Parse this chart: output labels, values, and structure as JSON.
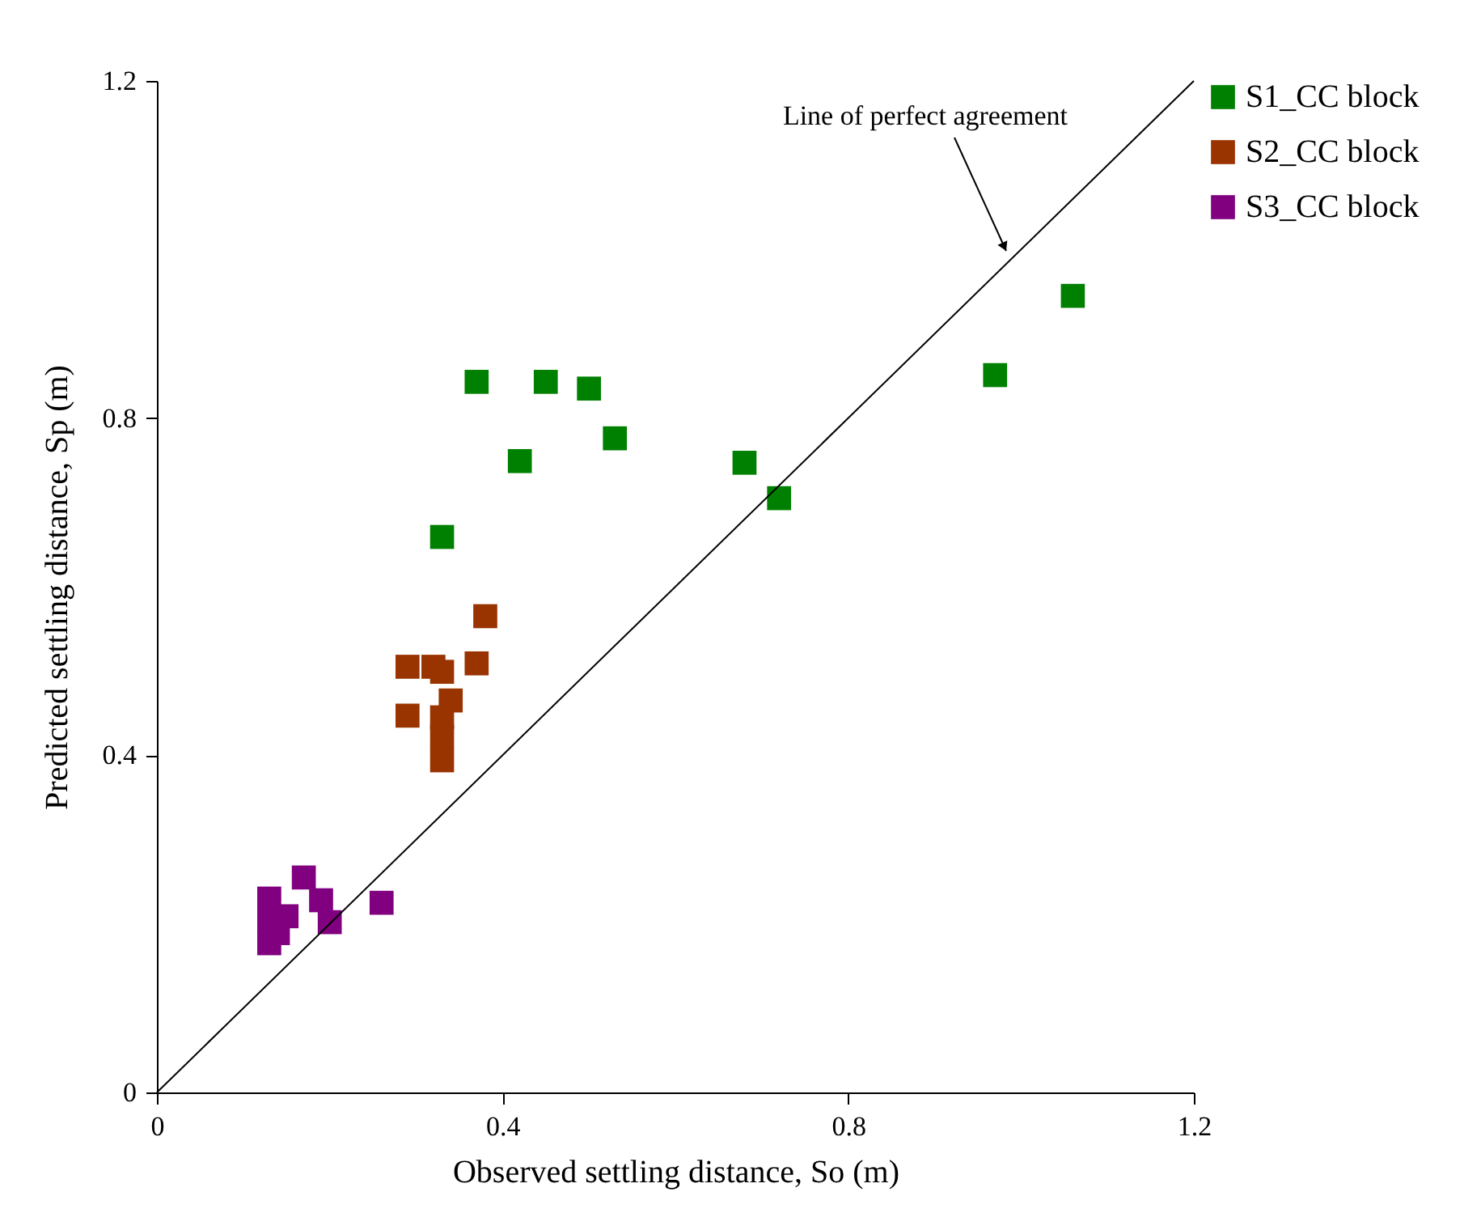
{
  "chart_data": {
    "type": "scatter",
    "xlabel": "Observed settling distance, So (m)",
    "ylabel": "Predicted settling distance, Sp (m)",
    "xlim": [
      0,
      1.2
    ],
    "ylim": [
      0,
      1.2
    ],
    "xticks": [
      0,
      0.4,
      0.8,
      1.2
    ],
    "yticks": [
      0,
      0.4,
      0.8,
      1.2
    ],
    "grid": false,
    "legend": "top right",
    "marker": "square",
    "annotations": [
      "Line of perfect agreement"
    ],
    "series": [
      {
        "name": "S1_CC block",
        "color": "#008000",
        "x": [
          0.37,
          0.45,
          0.5,
          0.53,
          0.42,
          0.33,
          0.68,
          0.72,
          0.97,
          1.06
        ],
        "values": [
          0.843,
          0.843,
          0.835,
          0.776,
          0.749,
          0.659,
          0.747,
          0.705,
          0.851,
          0.945
        ]
      },
      {
        "name": "S2_CC block",
        "color": "#993300",
        "x": [
          0.38,
          0.29,
          0.32,
          0.33,
          0.37,
          0.34,
          0.29,
          0.33,
          0.33,
          0.33
        ],
        "values": [
          0.565,
          0.505,
          0.505,
          0.499,
          0.509,
          0.465,
          0.447,
          0.445,
          0.422,
          0.394
        ]
      },
      {
        "name": "S3_CC block",
        "color": "#800080",
        "x": [
          0.17,
          0.13,
          0.19,
          0.15,
          0.2,
          0.13,
          0.14,
          0.13,
          0.26
        ],
        "values": [
          0.255,
          0.23,
          0.228,
          0.209,
          0.202,
          0.202,
          0.189,
          0.177,
          0.225
        ]
      },
      {
        "type": "line",
        "color": "#000000",
        "marker": "none",
        "x": [
          0,
          1.2
        ],
        "values": [
          0,
          1.2
        ]
      }
    ]
  }
}
